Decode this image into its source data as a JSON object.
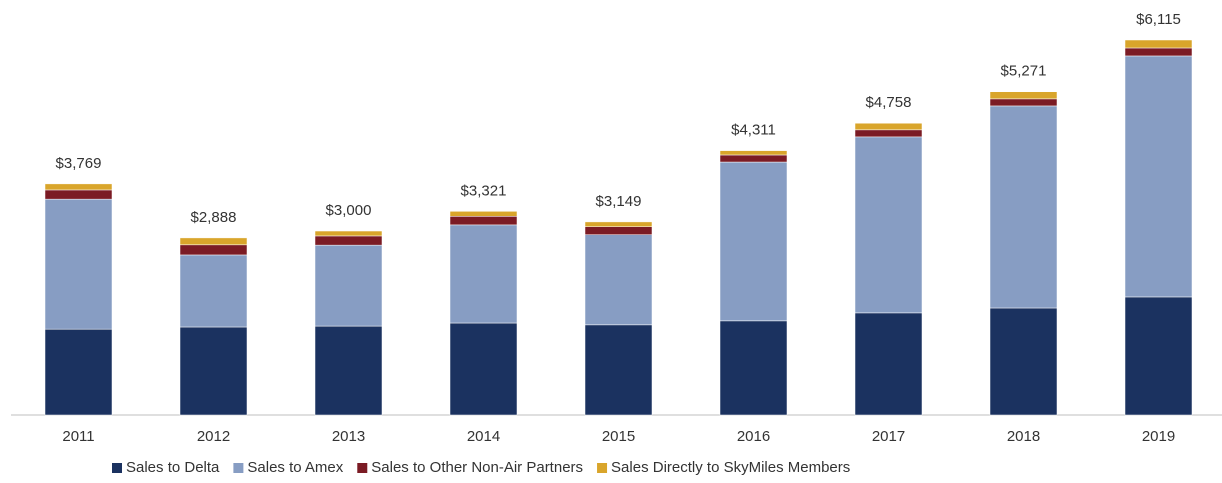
{
  "chart_data": {
    "type": "stacked-bar",
    "categories": [
      "2011",
      "2012",
      "2013",
      "2014",
      "2015",
      "2016",
      "2017",
      "2018",
      "2019"
    ],
    "series": [
      {
        "name": "Sales to Delta",
        "color": "#1b3260",
        "values": [
          1400,
          1435,
          1450,
          1500,
          1470,
          1535,
          1665,
          1745,
          1925
        ]
      },
      {
        "name": "Sales to Amex",
        "color": "#879dc3",
        "values": [
          2120,
          1175,
          1320,
          1600,
          1470,
          2590,
          2870,
          3295,
          3930
        ]
      },
      {
        "name": "Sales to Other Non-Air Partners",
        "color": "#7b1b24",
        "values": [
          150,
          165,
          150,
          140,
          130,
          115,
          115,
          115,
          130
        ]
      },
      {
        "name": "Sales Directly to SkyMiles Members",
        "color": "#d9a52b",
        "values": [
          99,
          113,
          80,
          81,
          79,
          71,
          108,
          116,
          130
        ]
      }
    ],
    "totals": [
      3769,
      2888,
      3000,
      3321,
      3149,
      4311,
      4758,
      5271,
      6115
    ],
    "total_labels": [
      "$3,769",
      "$2,888",
      "$3,000",
      "$3,321",
      "$3,149",
      "$4,311",
      "$4,758",
      "$5,271",
      "$6,115"
    ],
    "legend": "bottom"
  }
}
